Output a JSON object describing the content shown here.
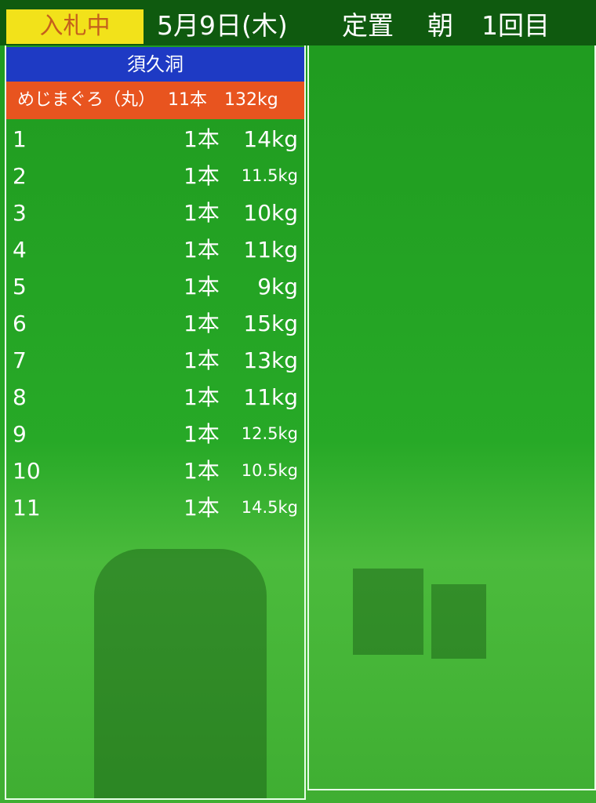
{
  "header": {
    "status": "入札中",
    "date": "5月9日(木)",
    "method": "定置",
    "session": "朝",
    "round": "1回目"
  },
  "panel": {
    "location": "須久洞",
    "summary": {
      "fish": "めじまぐろ（丸）",
      "count": "11本",
      "weight": "132kg"
    },
    "rows": [
      [
        "1",
        "1本",
        "14kg"
      ],
      [
        "2",
        "1本",
        "11.5kg"
      ],
      [
        "3",
        "1本",
        "10kg"
      ],
      [
        "4",
        "1本",
        "11kg"
      ],
      [
        "5",
        "1本",
        "9kg"
      ],
      [
        "6",
        "1本",
        "15kg"
      ],
      [
        "7",
        "1本",
        "13kg"
      ],
      [
        "8",
        "1本",
        "11kg"
      ],
      [
        "9",
        "1本",
        "12.5kg"
      ],
      [
        "10",
        "1本",
        "10.5kg"
      ],
      [
        "11",
        "1本",
        "14.5kg"
      ]
    ]
  }
}
